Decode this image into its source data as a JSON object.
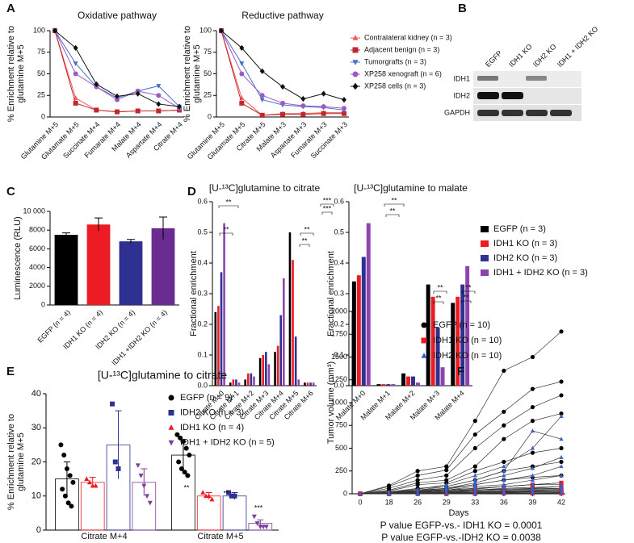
{
  "chart_data": [
    {
      "type": "line",
      "panel": "A",
      "title": "Oxidative pathway",
      "ylabel": [
        "% Enrichment relative to",
        "glutamine M+5"
      ],
      "categories": [
        "Glutamine M+5",
        "Glutamate M+5",
        "Succinate M+4",
        "Fumarate M+4",
        "Malate M+4",
        "Aspartate M+4",
        "Citrate M+4"
      ],
      "ylim": [
        0,
        100
      ],
      "yticks": [
        0,
        25,
        50,
        75,
        100
      ],
      "series": [
        {
          "color": "#f05a5a",
          "marker": "triangle",
          "values": [
            100,
            22,
            8,
            6,
            7,
            7,
            8
          ]
        },
        {
          "color": "#c0282d",
          "marker": "square",
          "values": [
            100,
            16,
            8,
            6,
            7,
            7,
            8
          ]
        },
        {
          "color": "#4a6fc7",
          "marker": "triangle-down",
          "values": [
            100,
            62,
            35,
            22,
            30,
            36,
            12
          ]
        },
        {
          "color": "#9a5bc6",
          "marker": "circle",
          "values": [
            100,
            50,
            35,
            20,
            30,
            25,
            10
          ]
        },
        {
          "color": "#111111",
          "marker": "diamond",
          "values": [
            100,
            80,
            38,
            24,
            27,
            15,
            12
          ]
        }
      ]
    },
    {
      "type": "line",
      "title": "Reductive pathway",
      "legend": true,
      "ylabel": [
        "% Enrichment relative to",
        "glutamine M+5"
      ],
      "categories": [
        "Glutamine M+5",
        "Glutamate M+5",
        "Citrate M+5",
        "Malate M+3",
        "Aspartate M+3",
        "Fumarate M+3",
        "Succinate M+3"
      ],
      "ylim": [
        0,
        100
      ],
      "yticks": [
        0,
        25,
        50,
        75,
        100
      ],
      "series": [
        {
          "name": "Contralateral kidney (n = 3)",
          "color": "#f05a5a",
          "marker": "triangle",
          "values": [
            100,
            22,
            2,
            4,
            4,
            5,
            5
          ]
        },
        {
          "name": "Adjacent benign (n = 3)",
          "color": "#c0282d",
          "marker": "square",
          "values": [
            100,
            16,
            2,
            3,
            3,
            4,
            4
          ]
        },
        {
          "name": "Tumorgrafts (n = 3)",
          "color": "#4a6fc7",
          "marker": "triangle-down",
          "values": [
            100,
            62,
            20,
            14,
            12,
            11,
            8
          ]
        },
        {
          "name": "XP258 xenograft (n = 6)",
          "color": "#9a5bc6",
          "marker": "circle",
          "values": [
            100,
            50,
            25,
            16,
            13,
            12,
            10
          ]
        },
        {
          "name": "XP258 cells (n = 3)",
          "color": "#111111",
          "marker": "diamond",
          "values": [
            100,
            80,
            53,
            35,
            21,
            27,
            20
          ]
        }
      ]
    },
    {
      "type": "bar",
      "panel": "C",
      "ylabel": "Luminescence (RLU)",
      "categories": [
        "EGFP (n = 4)",
        "IDH1 KO (n = 4)",
        "IDH2 KO (n = 4)",
        "IDH1 +IDH2 KO (n = 4)"
      ],
      "values": [
        7500,
        8600,
        6800,
        8200
      ],
      "errors": [
        200,
        700,
        200,
        1200
      ],
      "colors": [
        "#000000",
        "#ed1c24",
        "#2e3192",
        "#6a2c91"
      ],
      "ylim": [
        0,
        10000
      ],
      "yticks": [
        0,
        2000,
        4000,
        6000,
        8000,
        {
          "value": 10000,
          "label": "10 000"
        }
      ]
    },
    {
      "type": "grouped",
      "panel": "D",
      "title": "[U-¹³C]glutamine to citrate",
      "ylabel": "Fractional enrichment",
      "categories": [
        "Citrate M+0",
        "Citrate M+1",
        "Citrate M+2",
        "Citrate M+3",
        "Citrate M+4",
        "Citrate M+5",
        "Citrate M+6"
      ],
      "ylim": [
        0,
        0.6
      ],
      "yticks": [
        {
          "value": 0,
          "label": "0.0"
        },
        0.1,
        0.2,
        0.3,
        0.4,
        0.5,
        0.6
      ],
      "annotations": [
        "**",
        "**",
        "**",
        "**",
        "***",
        "***"
      ],
      "series": [
        {
          "color": "#000000",
          "values": [
            0.24,
            0.01,
            0.02,
            0.09,
            0.11,
            0.5,
            0.01
          ]
        },
        {
          "color": "#ed1c24",
          "values": [
            0.26,
            0.02,
            0.04,
            0.1,
            0.13,
            0.41,
            0.01
          ]
        },
        {
          "color": "#2e3192",
          "values": [
            0.37,
            0.02,
            0.04,
            0.11,
            0.23,
            0.16,
            0.01
          ]
        },
        {
          "color": "#8e44ad",
          "values": [
            0.53,
            0.01,
            0.03,
            0.07,
            0.35,
            0.02,
            0.01
          ]
        }
      ]
    },
    {
      "type": "grouped",
      "title": "[U-¹³C]glutamine to malate",
      "ylabel": "Fractional enrichment",
      "legend": true,
      "categories": [
        "Malate M+0",
        "Malate M+1",
        "Malate M+2",
        "Malate M+3",
        "Malate M+4"
      ],
      "ylim": [
        0,
        0.6
      ],
      "yticks": [
        {
          "value": 0,
          "label": "0.0"
        },
        0.1,
        0.2,
        0.3,
        0.4,
        0.5,
        0.6
      ],
      "annotations": [
        "**",
        "**",
        "**",
        "**",
        "**",
        "**"
      ],
      "series": [
        {
          "name": "EGFP (n = 3)",
          "color": "#000000",
          "values": [
            0.34,
            0.005,
            0.04,
            0.33,
            0.27
          ]
        },
        {
          "name": "IDH1 KO (n = 3)",
          "color": "#ed1c24",
          "values": [
            0.36,
            0.005,
            0.03,
            0.29,
            0.29
          ]
        },
        {
          "name": "IDH2 KO (n = 3)",
          "color": "#2e3192",
          "values": [
            0.42,
            0.005,
            0.03,
            0.19,
            0.33
          ]
        },
        {
          "name": "IDH1 + IDH2 KO (n = 3)",
          "color": "#8e44ad",
          "values": [
            0.53,
            0.005,
            0.01,
            0.06,
            0.39
          ]
        }
      ]
    },
    {
      "type": "dotbar",
      "panel": "E",
      "title": "[U-¹³C]glutamine to citrate",
      "legend": true,
      "ylabel": [
        "% Enrichment relative to",
        "glutamine M+5"
      ],
      "categories": [
        "Citrate M+4",
        "Citrate M+5"
      ],
      "ylim": [
        0,
        40
      ],
      "yticks": [
        0,
        10,
        20,
        30,
        40
      ],
      "annotations": [
        "**",
        "**",
        "***"
      ],
      "series": [
        {
          "name": "EGFP (n = 9)",
          "color": "#000000",
          "marker": "circle",
          "values": [
            15,
            22
          ],
          "errors": [
            5,
            4
          ],
          "points": [
            [
              25,
              22,
              18,
              16,
              14,
              12,
              10,
              8,
              7
            ],
            [
              28,
              27,
              26,
              24,
              22,
              20,
              18,
              17,
              16
            ]
          ]
        },
        {
          "name": "IDH2 KO (n = 3)",
          "color": "#2e3192",
          "marker": "square",
          "values": [
            25,
            10
          ],
          "errors": [
            10,
            1
          ],
          "points": [
            [
              37,
              20,
              18
            ],
            [
              11,
              10,
              10
            ]
          ]
        },
        {
          "name": "IDH1 KO (n = 4)",
          "color": "#ed1c24",
          "marker": "triangle",
          "values": [
            14,
            10
          ],
          "errors": [
            1.5,
            1
          ],
          "points": [
            [
              15,
              14,
              13,
              13
            ],
            [
              11,
              10,
              10,
              9
            ]
          ]
        },
        {
          "name": "IDH1 + IDH2 KO (n = 5)",
          "color": "#7e3f98",
          "marker": "triangle-down",
          "values": [
            14,
            2
          ],
          "errors": [
            4,
            1
          ],
          "points": [
            [
              19,
              16,
              13,
              10,
              8
            ],
            [
              4,
              2,
              1,
              1,
              1
            ]
          ]
        }
      ]
    },
    {
      "type": "lines",
      "panel": "F",
      "ylabel": "Tumor volume (mm³)",
      "xlabel": "Days",
      "legend": true,
      "categories": [
        "0",
        "18",
        "26",
        "29",
        "33",
        "36",
        "39",
        "42"
      ],
      "ylim": [
        0,
        2000
      ],
      "yticks": [
        0,
        250,
        500,
        750,
        1000,
        1250,
        1500,
        1750,
        2000
      ],
      "annotations": [
        "P value EGFP-vs.- IDH1 KO = 0.0001",
        "P value EGFP-vs.-IDH2 KO = 0.0038"
      ],
      "series": [
        {
          "name": "EGFP (n = 10)",
          "color": "#000000",
          "marker": "circle",
          "values": [
            [
              0,
              90,
              250,
              300,
              800,
              1350,
              1500,
              1780
            ],
            [
              0,
              80,
              200,
              260,
              650,
              900,
              1150,
              1230
            ],
            [
              0,
              60,
              150,
              200,
              500,
              750,
              950,
              1080
            ],
            [
              0,
              40,
              120,
              150,
              300,
              600,
              800,
              880
            ],
            [
              0,
              30,
              100,
              120,
              250,
              350,
              450,
              500
            ],
            [
              0,
              20,
              60,
              80,
              150,
              250,
              300,
              350
            ],
            [
              0,
              10,
              40,
              60,
              100,
              150,
              180,
              200
            ],
            [
              0,
              10,
              30,
              40,
              60,
              80,
              100,
              120
            ],
            [
              0,
              5,
              20,
              30,
              40,
              50,
              55,
              60
            ],
            [
              0,
              5,
              10,
              15,
              20,
              25,
              28,
              30
            ]
          ]
        },
        {
          "name": "IDH1 KO (n = 10)",
          "color": "#ed1c24",
          "marker": "square",
          "values": [
            [
              0,
              10,
              30,
              40,
              60,
              80,
              100,
              120
            ],
            [
              0,
              5,
              20,
              30,
              40,
              60,
              70,
              80
            ],
            [
              0,
              5,
              10,
              20,
              30,
              40,
              50,
              60
            ],
            [
              0,
              5,
              10,
              10,
              20,
              30,
              35,
              40
            ],
            [
              0,
              0,
              5,
              10,
              10,
              20,
              25,
              30
            ],
            [
              0,
              0,
              5,
              5,
              10,
              15,
              20,
              20
            ],
            [
              0,
              0,
              5,
              5,
              5,
              10,
              10,
              15
            ],
            [
              0,
              0,
              0,
              5,
              5,
              5,
              10,
              10
            ],
            [
              0,
              0,
              0,
              0,
              5,
              5,
              5,
              5
            ],
            [
              0,
              0,
              0,
              0,
              0,
              5,
              5,
              5
            ]
          ]
        },
        {
          "name": "IDH2 KO (n = 10)",
          "color": "#3a5fc8",
          "marker": "triangle",
          "values": [
            [
              0,
              20,
              50,
              100,
              200,
              300,
              500,
              850
            ],
            [
              0,
              15,
              40,
              80,
              150,
              250,
              690,
              600
            ],
            [
              0,
              10,
              30,
              60,
              120,
              200,
              280,
              400
            ],
            [
              0,
              10,
              25,
              50,
              100,
              150,
              200,
              300
            ],
            [
              0,
              5,
              20,
              40,
              80,
              100,
              150,
              200
            ],
            [
              0,
              5,
              15,
              30,
              50,
              80,
              100,
              100
            ],
            [
              0,
              5,
              10,
              20,
              40,
              50,
              60,
              80
            ],
            [
              0,
              0,
              10,
              15,
              20,
              30,
              40,
              50
            ],
            [
              0,
              0,
              5,
              10,
              15,
              20,
              20,
              20
            ],
            [
              0,
              0,
              0,
              5,
              5,
              10,
              10,
              10
            ]
          ]
        }
      ]
    }
  ],
  "blot": {
    "panel": "B",
    "lanes": [
      "EGFP",
      "IDH1 KO",
      "IDH2 KO",
      "IDH1 + IDH2 KO"
    ],
    "rows": [
      "IDH1",
      "IDH2",
      "GAPDH"
    ]
  }
}
